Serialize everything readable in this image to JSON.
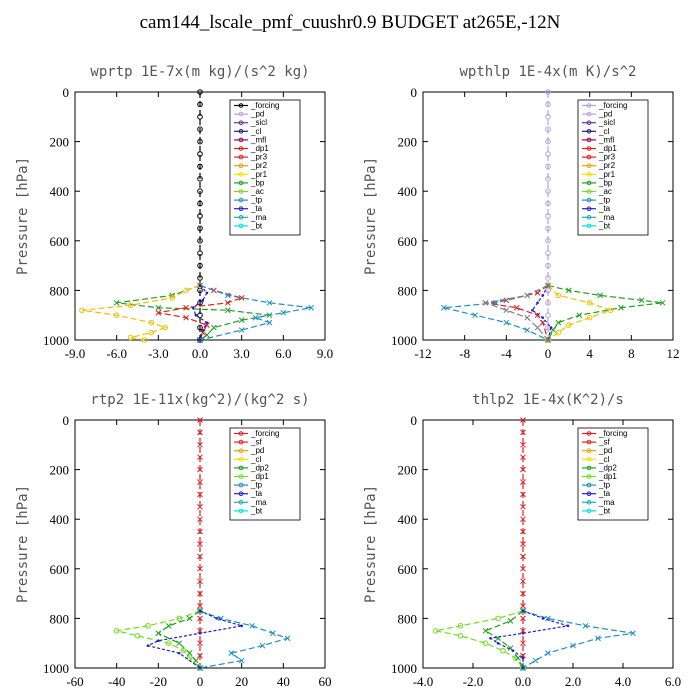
{
  "title": "cam144_lscale_pmf_cuushr0.9  BUDGET at265E,-12N",
  "chart_data": [
    {
      "type": "line",
      "title": "wprtp  1E-7x(m kg)/(s^2 kg)",
      "ylabel": "Pressure [hPa]",
      "xlim": [
        -9,
        9
      ],
      "ylim": [
        1000,
        0
      ],
      "xticks": [
        "-9.0",
        "-6.0",
        "-3.0",
        "0.0",
        "3.0",
        "6.0",
        "9.0"
      ],
      "yticks": [
        "0",
        "200",
        "400",
        "600",
        "800",
        "1000"
      ],
      "legend": [
        "_forcing",
        "_pd",
        "_sicl",
        "_cl",
        "_mfl",
        "_dp1",
        "_pr3",
        "_pr2",
        "_pr1",
        "_bp",
        "_ac",
        "_tp",
        "_ta",
        "_ma",
        "_bt"
      ],
      "colors": [
        "#000000",
        "#b8a0e0",
        "#7030a0",
        "#202080",
        "#a00050",
        "#e02020",
        "#e02020",
        "#f0a000",
        "#f0e000",
        "#20a020",
        "#70e020",
        "#2090c0",
        "#2020d0",
        "#20b0b0",
        "#00e0e0"
      ],
      "series": [
        {
          "name": "_forcing",
          "color": "#000000",
          "marker": "circle",
          "y": [
            0,
            50,
            100,
            150,
            200,
            250,
            300,
            350,
            400,
            450,
            500,
            550,
            600,
            650,
            700,
            750,
            800,
            850,
            900,
            950,
            1000
          ],
          "x": [
            0,
            0,
            0,
            0,
            0,
            0,
            0,
            0,
            0,
            0,
            0,
            0,
            0,
            0,
            0,
            0,
            0,
            0,
            0,
            0,
            0
          ]
        },
        {
          "name": "_ac",
          "color": "#20a020",
          "marker": "x",
          "y": [
            780,
            820,
            850,
            870,
            880,
            900,
            920,
            950,
            980,
            1000
          ],
          "x": [
            0,
            -2,
            -6,
            -3,
            2,
            5,
            3,
            1,
            0.5,
            0
          ]
        },
        {
          "name": "_pr3",
          "color": "#e02020",
          "marker": "x",
          "y": [
            780,
            800,
            830,
            850,
            870,
            890,
            910,
            940,
            970,
            1000
          ],
          "x": [
            0,
            1,
            3,
            2,
            -1,
            -3,
            -1,
            0.5,
            0.2,
            0
          ]
        },
        {
          "name": "_pr1",
          "color": "#f0c000",
          "marker": "circle",
          "y": [
            780,
            800,
            830,
            860,
            880,
            900,
            930,
            950,
            970,
            990,
            1000
          ],
          "x": [
            0,
            -1,
            -2,
            -5,
            -8.5,
            -6,
            -3.5,
            -2.5,
            -3.5,
            -5,
            -4
          ]
        },
        {
          "name": "_tp",
          "color": "#2090c0",
          "marker": "x",
          "y": [
            780,
            820,
            850,
            870,
            890,
            910,
            930,
            960,
            1000
          ],
          "x": [
            0,
            2,
            5,
            8,
            6,
            4,
            5,
            3,
            0
          ]
        },
        {
          "name": "_ta",
          "color": "#2020d0",
          "marker": "dot",
          "y": [
            780,
            810,
            840,
            870,
            900,
            930,
            960,
            1000
          ],
          "x": [
            0,
            0.5,
            0.2,
            -0.5,
            -0.3,
            0.5,
            0.2,
            0
          ]
        }
      ]
    },
    {
      "type": "line",
      "title": "wpthlp  1E-4x(m K)/s^2",
      "ylabel": "Pressure [hPa]",
      "xlim": [
        -12,
        12
      ],
      "ylim": [
        1000,
        0
      ],
      "xticks": [
        "-12",
        "-8",
        "-4",
        "0",
        "4",
        "8",
        "12"
      ],
      "yticks": [
        "0",
        "200",
        "400",
        "600",
        "800",
        "1000"
      ],
      "legend": [
        "_forcing",
        "_pd",
        "_sicl",
        "_cl",
        "_mfl",
        "_dp1",
        "_pr3",
        "_pr2",
        "_pr1",
        "_bp",
        "_ac",
        "_tp",
        "_ta",
        "_ma",
        "_bt"
      ],
      "colors": [
        "#b8a0e0",
        "#b8a0e0",
        "#7030a0",
        "#202080",
        "#a00050",
        "#e02020",
        "#e02020",
        "#f0a000",
        "#f0e000",
        "#20a020",
        "#70e020",
        "#2090c0",
        "#2020d0",
        "#20b0b0",
        "#00e0e0"
      ],
      "series": [
        {
          "name": "_forcing",
          "color": "#b8a0e0",
          "marker": "circle",
          "y": [
            0,
            50,
            100,
            150,
            200,
            250,
            300,
            350,
            400,
            450,
            500,
            550,
            600,
            650,
            700,
            750,
            800,
            850,
            900,
            950,
            1000
          ],
          "x": [
            0,
            0,
            0,
            0,
            0,
            0,
            0,
            0,
            0,
            0,
            0,
            0,
            0,
            0,
            0,
            0,
            0,
            0,
            0,
            0,
            0
          ]
        },
        {
          "name": "_ac",
          "color": "#20a020",
          "marker": "x",
          "y": [
            780,
            800,
            820,
            840,
            850,
            870,
            900,
            930,
            960,
            1000
          ],
          "x": [
            0,
            2,
            5,
            9,
            11,
            7,
            3,
            1,
            0.5,
            0
          ]
        },
        {
          "name": "_pr3",
          "color": "#e02020",
          "marker": "x",
          "y": [
            780,
            810,
            840,
            850,
            870,
            900,
            930,
            1000
          ],
          "x": [
            0,
            -1,
            -4,
            -6,
            -3,
            -1,
            -0.5,
            0
          ]
        },
        {
          "name": "_pr1",
          "color": "#f0c000",
          "marker": "circle",
          "y": [
            780,
            820,
            850,
            880,
            910,
            940,
            970,
            1000
          ],
          "x": [
            0,
            1,
            4,
            6,
            4,
            2,
            1,
            0
          ]
        },
        {
          "name": "_tp",
          "color": "#2090c0",
          "marker": "x",
          "y": [
            780,
            820,
            850,
            870,
            900,
            930,
            960,
            1000
          ],
          "x": [
            0,
            -2,
            -5,
            -10,
            -7,
            -4,
            -2,
            0
          ]
        },
        {
          "name": "_ta",
          "color": "#2020d0",
          "marker": "dot",
          "y": [
            780,
            820,
            850,
            880,
            910,
            950,
            1000
          ],
          "x": [
            0,
            -0.5,
            -1,
            -1.5,
            -0.5,
            0.3,
            0
          ]
        },
        {
          "name": "_bp",
          "color": "#808080",
          "marker": "x",
          "y": [
            780,
            820,
            850,
            880,
            910,
            950,
            1000
          ],
          "x": [
            0,
            -2,
            -6,
            -4,
            -2,
            -1,
            0
          ]
        }
      ]
    },
    {
      "type": "line",
      "title": "rtp2  1E-11x(kg^2)/(kg^2 s)",
      "ylabel": "Pressure [hPa]",
      "xlim": [
        -60,
        60
      ],
      "ylim": [
        1000,
        0
      ],
      "xticks": [
        "-60",
        "-40",
        "-20",
        "0",
        "20",
        "40",
        "60"
      ],
      "yticks": [
        "0",
        "200",
        "400",
        "600",
        "800",
        "1000"
      ],
      "legend": [
        "_forcing",
        "_sf",
        "_pd",
        "_cl",
        "_dp2",
        "_dp1",
        "_tp",
        "_ta",
        "_ma",
        "_bt"
      ],
      "colors": [
        "#e02020",
        "#e02020",
        "#f0a000",
        "#f0e000",
        "#20a020",
        "#70e020",
        "#2090c0",
        "#2020d0",
        "#20b0b0",
        "#00e0e0"
      ],
      "series": [
        {
          "name": "_forcing",
          "color": "#e02020",
          "marker": "x",
          "y": [
            0,
            50,
            100,
            150,
            200,
            250,
            300,
            350,
            400,
            450,
            500,
            550,
            600,
            650,
            700,
            750,
            800,
            850,
            900,
            950,
            1000
          ],
          "x": [
            0,
            0,
            0,
            0,
            0,
            0,
            0,
            0,
            0,
            0,
            0,
            0,
            0,
            0,
            0,
            0,
            0,
            0,
            0,
            0,
            0
          ]
        },
        {
          "name": "_dp1",
          "color": "#70e020",
          "marker": "circle",
          "y": [
            770,
            800,
            830,
            850,
            870,
            900,
            930,
            960,
            1000
          ],
          "x": [
            0,
            -10,
            -25,
            -40,
            -30,
            -15,
            -8,
            -5,
            0
          ]
        },
        {
          "name": "_dp2",
          "color": "#20a020",
          "marker": "x",
          "y": [
            770,
            800,
            830,
            860,
            900,
            940,
            970,
            1000
          ],
          "x": [
            0,
            -5,
            -15,
            -20,
            -10,
            -5,
            -2,
            0
          ]
        },
        {
          "name": "_tp",
          "color": "#2090c0",
          "marker": "x",
          "y": [
            770,
            800,
            830,
            860,
            880,
            910,
            940,
            970,
            1000
          ],
          "x": [
            0,
            10,
            25,
            35,
            42,
            30,
            15,
            20,
            0
          ]
        },
        {
          "name": "_ta",
          "color": "#2020d0",
          "marker": "dot",
          "y": [
            770,
            800,
            830,
            860,
            890,
            910,
            940,
            1000
          ],
          "x": [
            0,
            8,
            20,
            0,
            -20,
            -25,
            -10,
            0
          ]
        }
      ]
    },
    {
      "type": "line",
      "title": "thlp2  1E-4x(K^2)/s",
      "ylabel": "Pressure [hPa]",
      "xlim": [
        -4,
        6
      ],
      "ylim": [
        1000,
        0
      ],
      "xticks": [
        "-4.0",
        "-2.0",
        "0.0",
        "2.0",
        "4.0",
        "6.0"
      ],
      "yticks": [
        "0",
        "200",
        "400",
        "600",
        "800",
        "1000"
      ],
      "legend": [
        "_forcing",
        "_sf",
        "_pd",
        "_cl",
        "_dp2",
        "_dp1",
        "_tp",
        "_ta",
        "_ma",
        "_bt"
      ],
      "colors": [
        "#e02020",
        "#e02020",
        "#f0a000",
        "#f0e000",
        "#20a020",
        "#70e020",
        "#2090c0",
        "#2020d0",
        "#20b0b0",
        "#00e0e0"
      ],
      "series": [
        {
          "name": "_forcing",
          "color": "#e02020",
          "marker": "x",
          "y": [
            0,
            50,
            100,
            150,
            200,
            250,
            300,
            350,
            400,
            450,
            500,
            550,
            600,
            650,
            700,
            750,
            800,
            850,
            900,
            950,
            1000
          ],
          "x": [
            0,
            0,
            0,
            0,
            0,
            0,
            0,
            0,
            0,
            0,
            0,
            0,
            0,
            0,
            0,
            0,
            0,
            0,
            0,
            0,
            0
          ]
        },
        {
          "name": "_dp1",
          "color": "#70e020",
          "marker": "circle",
          "y": [
            770,
            800,
            830,
            850,
            870,
            900,
            930,
            960,
            1000
          ],
          "x": [
            0,
            -1,
            -2.5,
            -3.5,
            -2.5,
            -1.5,
            -0.8,
            -0.3,
            0
          ]
        },
        {
          "name": "_dp2",
          "color": "#20a020",
          "marker": "x",
          "y": [
            770,
            810,
            850,
            880,
            920,
            960,
            1000
          ],
          "x": [
            0,
            -0.5,
            -1.5,
            -1,
            -0.5,
            -0.2,
            0
          ]
        },
        {
          "name": "_tp",
          "color": "#2090c0",
          "marker": "x",
          "y": [
            770,
            800,
            830,
            860,
            880,
            910,
            940,
            970,
            1000
          ],
          "x": [
            0,
            1,
            2.5,
            4.4,
            3,
            2,
            1,
            0.5,
            0
          ]
        },
        {
          "name": "_ta",
          "color": "#2020d0",
          "marker": "dot",
          "y": [
            770,
            800,
            830,
            860,
            880,
            900,
            930,
            960,
            1000
          ],
          "x": [
            0,
            0.8,
            1.8,
            0,
            -1.3,
            -1,
            -0.4,
            0,
            0
          ]
        }
      ]
    }
  ]
}
